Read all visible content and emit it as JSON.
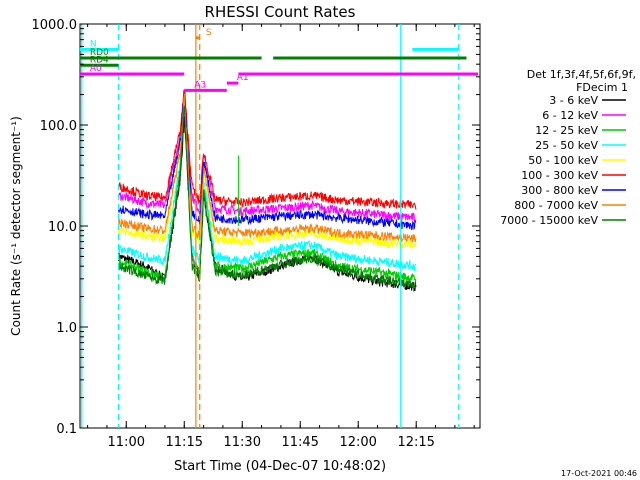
{
  "chart_data": {
    "type": "line",
    "title": "RHESSI Count Rates",
    "xlabel": "Start Time (04-Dec-07 10:48:02)",
    "ylabel": "Count Rate (s⁻¹ detector segment⁻¹)",
    "yscale": "log",
    "ylim": [
      0.1,
      1000
    ],
    "xlim": [
      "10:48:02",
      "12:31:30"
    ],
    "grid": false,
    "x_ticks": [
      "11:00",
      "11:15",
      "11:30",
      "11:45",
      "12:00",
      "12:15"
    ],
    "y_ticks": [
      "0.1",
      "1.0",
      "10.0",
      "100.0",
      "1000.0"
    ],
    "legend_title": [
      "Det 1f,3f,4f,5f,6f,9f,",
      "FDecim 1"
    ],
    "legend_position": "right",
    "footer": "17-Oct-2021 00:46",
    "series": [
      {
        "name": "3 - 6 keV",
        "color": "#000000",
        "x": [
          "10:58",
          "11:05",
          "11:10",
          "11:14",
          "11:15",
          "11:17",
          "11:19",
          "11:20",
          "11:23",
          "11:30",
          "11:40",
          "11:48",
          "11:55",
          "12:05",
          "12:15"
        ],
        "values": [
          5.0,
          4.0,
          3.0,
          30,
          120,
          5,
          3,
          20,
          4,
          3,
          4,
          5,
          3.5,
          2.8,
          2.5
        ]
      },
      {
        "name": "6 - 12 keV",
        "color": "#ff00ff",
        "x": [
          "10:58",
          "11:05",
          "11:10",
          "11:14",
          "11:15",
          "11:17",
          "11:19",
          "11:20",
          "11:23",
          "11:30",
          "11:40",
          "11:48",
          "11:55",
          "12:05",
          "12:15"
        ],
        "values": [
          20,
          17,
          16,
          80,
          200,
          20,
          14,
          50,
          15,
          14,
          15,
          16,
          14,
          13,
          12
        ]
      },
      {
        "name": "12 - 25 keV",
        "color": "#00cc00",
        "x": [
          "10:58",
          "11:05",
          "11:10",
          "11:14",
          "11:15",
          "11:17",
          "11:19",
          "11:20",
          "11:23",
          "11:30",
          "11:40",
          "11:48",
          "11:55",
          "12:05",
          "12:15"
        ],
        "values": [
          4.5,
          3.6,
          3.0,
          40,
          180,
          5,
          3.5,
          25,
          4,
          3.8,
          5,
          5.5,
          4,
          3.5,
          3.0
        ]
      },
      {
        "name": "25 - 50 keV",
        "color": "#00ffff",
        "x": [
          "10:58",
          "11:05",
          "11:10",
          "11:14",
          "11:15",
          "11:17",
          "11:19",
          "11:20",
          "11:23",
          "11:30",
          "11:40",
          "11:48",
          "11:55",
          "12:05",
          "12:15"
        ],
        "values": [
          6,
          5,
          4.5,
          45,
          190,
          6,
          4.5,
          28,
          5,
          4.5,
          6,
          6.5,
          5,
          4.5,
          4
        ]
      },
      {
        "name": "50 - 100 keV",
        "color": "#ffff00",
        "x": [
          "10:58",
          "11:05",
          "11:10",
          "11:14",
          "11:15",
          "11:17",
          "11:19",
          "11:20",
          "11:23",
          "11:30",
          "11:40",
          "11:48",
          "11:55",
          "12:05",
          "12:15"
        ],
        "values": [
          9,
          8,
          7.5,
          60,
          210,
          9,
          7,
          35,
          7.5,
          7,
          8,
          8.5,
          7.5,
          7,
          6.5
        ]
      },
      {
        "name": "100 - 300 keV",
        "color": "#ff0000",
        "x": [
          "10:58",
          "11:05",
          "11:10",
          "11:14",
          "11:15",
          "11:17",
          "11:19",
          "11:20",
          "11:23",
          "11:30",
          "11:40",
          "11:48",
          "11:55",
          "12:05",
          "12:15"
        ],
        "values": [
          25,
          20,
          19,
          90,
          230,
          25,
          17,
          55,
          18,
          17,
          19,
          20,
          18,
          17,
          16
        ]
      },
      {
        "name": "300 - 800 keV",
        "color": "#0000ff",
        "x": [
          "10:58",
          "11:05",
          "11:10",
          "11:14",
          "11:15",
          "11:17",
          "11:19",
          "11:20",
          "11:23",
          "11:30",
          "11:40",
          "11:48",
          "11:55",
          "12:05",
          "12:15"
        ],
        "values": [
          15,
          13,
          12.5,
          70,
          200,
          14,
          11,
          45,
          12,
          11.5,
          12.5,
          13,
          12,
          11,
          10
        ]
      },
      {
        "name": "800 - 7000 keV",
        "color": "#ff8000",
        "x": [
          "10:58",
          "11:05",
          "11:10",
          "11:14",
          "11:15",
          "11:17",
          "11:19",
          "11:20",
          "11:23",
          "11:30",
          "11:40",
          "11:48",
          "11:55",
          "12:05",
          "12:15"
        ],
        "values": [
          11,
          9.5,
          9,
          55,
          190,
          10,
          8,
          38,
          9,
          8.5,
          9,
          9.5,
          8.5,
          8,
          7.5
        ]
      },
      {
        "name": "7000 - 15000 keV",
        "color": "#008000",
        "x": [
          "10:58",
          "11:05",
          "11:10",
          "11:14",
          "11:15",
          "11:17",
          "11:19",
          "11:20",
          "11:23",
          "11:30",
          "11:40",
          "11:48",
          "11:55",
          "12:05",
          "12:15"
        ],
        "values": [
          4.0,
          3.2,
          2.8,
          35,
          160,
          4,
          3,
          22,
          3.5,
          3.2,
          4.2,
          4.8,
          3.8,
          3.0,
          2.6
        ]
      }
    ],
    "flags": [
      {
        "label": "N",
        "color": "#00ffff",
        "segments": [
          [
            "10:48",
            "10:58"
          ],
          [
            "12:14",
            "12:26"
          ]
        ],
        "level": 560
      },
      {
        "label": "RD0",
        "color": "#008000",
        "segments": [
          [
            "10:48",
            "11:35"
          ],
          [
            "11:38",
            "12:28"
          ]
        ],
        "level": 460
      },
      {
        "label": "RD4",
        "color": "#008000",
        "segments": [
          [
            "10:48",
            "10:58"
          ]
        ],
        "level": 390
      },
      {
        "label": "A0",
        "color": "#ff00ff",
        "segments": [
          [
            "10:48",
            "11:15"
          ],
          [
            "11:29",
            "12:31"
          ]
        ],
        "level": 320
      },
      {
        "label": "A1",
        "color": "#ff00ff",
        "segments": [
          [
            "11:26",
            "11:29"
          ]
        ],
        "level": 260
      },
      {
        "label": "A3",
        "color": "#ff00ff",
        "segments": [
          [
            "11:15",
            "11:26"
          ]
        ],
        "level": 220
      },
      {
        "label": "S",
        "color": "#ff8000",
        "segments": [
          [
            "11:18",
            "11:19"
          ]
        ],
        "level": 730
      }
    ],
    "markers": {
      "cyan_solid_x": [
        "10:48:30",
        "12:11"
      ],
      "cyan_dashed_x": [
        "10:58",
        "12:26"
      ],
      "orange_solid_x": [
        "11:18"
      ],
      "orange_dashed_x": [
        "11:19"
      ],
      "green_spike": {
        "x": "11:29",
        "from": 10,
        "to": 50
      }
    }
  }
}
